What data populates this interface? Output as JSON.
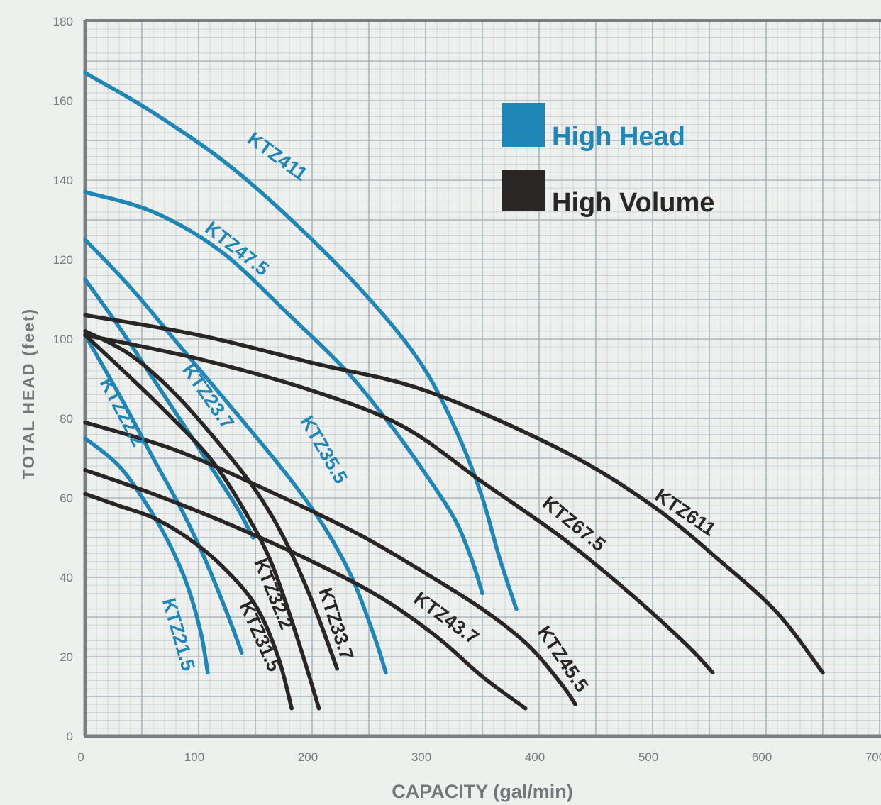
{
  "chart_data": {
    "type": "line",
    "xlabel": "CAPACITY (gal/min)",
    "ylabel": "TOTAL HEAD (feet)",
    "xlim": [
      0,
      700
    ],
    "ylim": [
      0,
      180
    ],
    "x_ticks": [
      "0",
      "100",
      "200",
      "300",
      "400",
      "500",
      "600",
      "700"
    ],
    "y_ticks": [
      "0",
      "20",
      "40",
      "60",
      "80",
      "100",
      "120",
      "140",
      "160",
      "180"
    ],
    "grid": true,
    "legend_position": "top-right",
    "colors": {
      "high_head": "#1f86b8",
      "high_volume": "#2a2626",
      "grid": "#b9c4cc",
      "frame": "#7b7f82"
    },
    "legend": [
      {
        "label": "High Head",
        "group": "high_head"
      },
      {
        "label": "High Volume",
        "group": "high_volume"
      }
    ],
    "series": [
      {
        "name": "KTZ411",
        "group": "high_head",
        "x": [
          0,
          60,
          130,
          200,
          260,
          300,
          330,
          350,
          365,
          380
        ],
        "y": [
          167,
          157,
          143,
          125,
          107,
          92,
          75,
          60,
          45,
          32
        ]
      },
      {
        "name": "KTZ47.5",
        "group": "high_head",
        "x": [
          0,
          60,
          120,
          180,
          230,
          270,
          300,
          325,
          340,
          350
        ],
        "y": [
          137,
          132,
          122,
          106,
          92,
          78,
          66,
          55,
          45,
          36
        ]
      },
      {
        "name": "KTZ35.5",
        "group": "high_head",
        "x": [
          0,
          40,
          90,
          140,
          180,
          210,
          235,
          255,
          265
        ],
        "y": [
          125,
          113,
          96,
          79,
          65,
          53,
          40,
          25,
          16
        ]
      },
      {
        "name": "KTZ23.7",
        "group": "high_head",
        "x": [
          0,
          30,
          60,
          90,
          115,
          135,
          148
        ],
        "y": [
          115,
          103,
          90,
          77,
          66,
          57,
          50
        ]
      },
      {
        "name": "KTZ22.2",
        "group": "high_head",
        "x": [
          0,
          30,
          60,
          85,
          105,
          125,
          138
        ],
        "y": [
          101,
          86,
          70,
          57,
          45,
          31,
          21
        ]
      },
      {
        "name": "KTZ21.5",
        "group": "high_head",
        "x": [
          0,
          30,
          55,
          75,
          90,
          102,
          108
        ],
        "y": [
          75,
          68,
          58,
          48,
          38,
          26,
          16
        ]
      },
      {
        "name": "KTZ611",
        "group": "high_volume",
        "x": [
          0,
          100,
          200,
          300,
          420,
          500,
          560,
          610,
          650
        ],
        "y": [
          106,
          101,
          94,
          87,
          72,
          58,
          44,
          31,
          16
        ]
      },
      {
        "name": "KTZ67.5",
        "group": "high_volume",
        "x": [
          0,
          100,
          200,
          280,
          350,
          420,
          480,
          530,
          553
        ],
        "y": [
          101,
          95,
          87,
          78,
          64,
          50,
          36,
          23,
          16
        ]
      },
      {
        "name": "KTZ45.5",
        "group": "high_volume",
        "x": [
          0,
          80,
          160,
          240,
          300,
          350,
          390,
          420,
          432
        ],
        "y": [
          79,
          72,
          62,
          51,
          41,
          32,
          23,
          13,
          8
        ]
      },
      {
        "name": "KTZ43.7",
        "group": "high_volume",
        "x": [
          0,
          60,
          130,
          200,
          260,
          310,
          350,
          388
        ],
        "y": [
          67,
          61,
          53,
          44,
          35,
          25,
          15,
          7
        ]
      },
      {
        "name": "KTZ33.7",
        "group": "high_volume",
        "x": [
          0,
          40,
          80,
          120,
          150,
          175,
          200,
          222
        ],
        "y": [
          102,
          96,
          86,
          73,
          62,
          50,
          34,
          17
        ]
      },
      {
        "name": "KTZ32.2",
        "group": "high_volume",
        "x": [
          0,
          30,
          70,
          110,
          140,
          165,
          190,
          206
        ],
        "y": [
          101,
          93,
          82,
          70,
          57,
          43,
          22,
          7
        ]
      },
      {
        "name": "KTZ31.5",
        "group": "high_volume",
        "x": [
          0,
          30,
          60,
          90,
          120,
          150,
          170,
          182
        ],
        "y": [
          61,
          58,
          55,
          50,
          43,
          33,
          20,
          7
        ]
      }
    ]
  },
  "curve_labels": [
    {
      "text": "KTZ411",
      "group": "high_head"
    },
    {
      "text": "KTZ47.5",
      "group": "high_head"
    },
    {
      "text": "KTZ35.5",
      "group": "high_head"
    },
    {
      "text": "KTZ23.7",
      "group": "high_head"
    },
    {
      "text": "KTZ22.2",
      "group": "high_head"
    },
    {
      "text": "KTZ21.5",
      "group": "high_head"
    },
    {
      "text": "KTZ611",
      "group": "high_volume"
    },
    {
      "text": "KTZ67.5",
      "group": "high_volume"
    },
    {
      "text": "KTZ45.5",
      "group": "high_volume"
    },
    {
      "text": "KTZ43.7",
      "group": "high_volume"
    },
    {
      "text": "KTZ33.7",
      "group": "high_volume"
    },
    {
      "text": "KTZ32.2",
      "group": "high_volume"
    },
    {
      "text": "KTZ31.5",
      "group": "high_volume"
    }
  ]
}
